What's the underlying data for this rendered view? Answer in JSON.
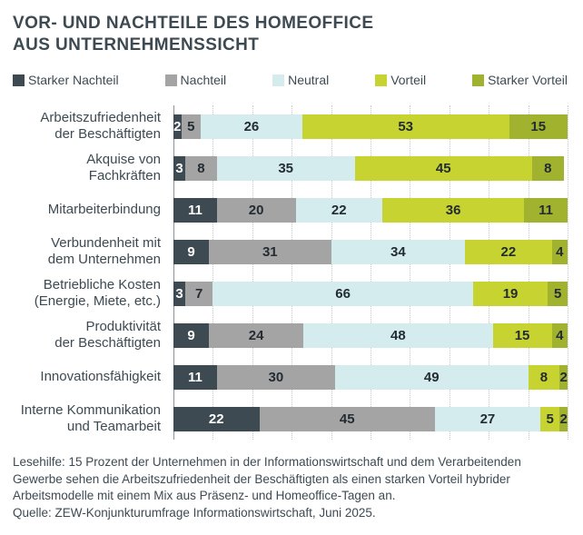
{
  "title": "VOR- UND NACHTEILE DES HOMEOFFICE\nAUS UNTERNEHMENSSICHT",
  "legend": [
    {
      "label": "Starker Nachteil",
      "color": "#3d4a52"
    },
    {
      "label": "Nachteil",
      "color": "#a4a4a4"
    },
    {
      "label": "Neutral",
      "color": "#d4ecee"
    },
    {
      "label": "Vorteil",
      "color": "#c6d330"
    },
    {
      "label": "Starker Vorteil",
      "color": "#a1b22e"
    }
  ],
  "chart_data": {
    "type": "bar",
    "orientation": "horizontal",
    "stacked": true,
    "unit": "percent",
    "xlim": [
      0,
      100
    ],
    "grid": "dotted vertical lines every 10 percent, solid axis at 0",
    "legend_position": "top",
    "categories": [
      "Arbeitszufriedenheit\nder Beschäftigten",
      "Akquise von Fachkräften",
      "Mitarbeiterbindung",
      "Verbundenheit mit\ndem Unternehmen",
      "Betriebliche Kosten\n(Energie, Miete, etc.)",
      "Produktivität\nder Beschäftigten",
      "Innovationsfähigkeit",
      "Interne Kommunikation\nund Teamarbeit"
    ],
    "series": [
      {
        "name": "Starker Nachteil",
        "color": "#3d4a52",
        "text_color": "#ffffff",
        "values": [
          2,
          3,
          11,
          9,
          3,
          9,
          11,
          22
        ]
      },
      {
        "name": "Nachteil",
        "color": "#a4a4a4",
        "text_color": "#242c33",
        "values": [
          5,
          8,
          20,
          31,
          7,
          24,
          30,
          45
        ]
      },
      {
        "name": "Neutral",
        "color": "#d4ecee",
        "text_color": "#242c33",
        "values": [
          26,
          35,
          22,
          34,
          66,
          48,
          49,
          27
        ]
      },
      {
        "name": "Vorteil",
        "color": "#c6d330",
        "text_color": "#242c33",
        "values": [
          53,
          45,
          36,
          22,
          19,
          15,
          8,
          5
        ]
      },
      {
        "name": "Starker Vorteil",
        "color": "#a1b22e",
        "text_color": "#242c33",
        "values": [
          15,
          8,
          11,
          4,
          5,
          4,
          2,
          2
        ]
      }
    ],
    "title": "VOR- UND NACHTEILE DES HOMEOFFICE AUS UNTERNEHMENSSICHT"
  },
  "footer": {
    "lesehilfe": "Lesehilfe: 15 Prozent der Unternehmen in der Informationswirtschaft und dem Verarbeitenden Gewerbe sehen die Arbeitszufriedenheit der Beschäftigten als einen starken Vorteil hybrider Arbeitsmodelle mit einem Mix aus Präsenz- und Homeoffice-Tagen an.",
    "quelle": "Quelle: ZEW-Konjunkturumfrage Informationswirtschaft, Juni 2025."
  }
}
